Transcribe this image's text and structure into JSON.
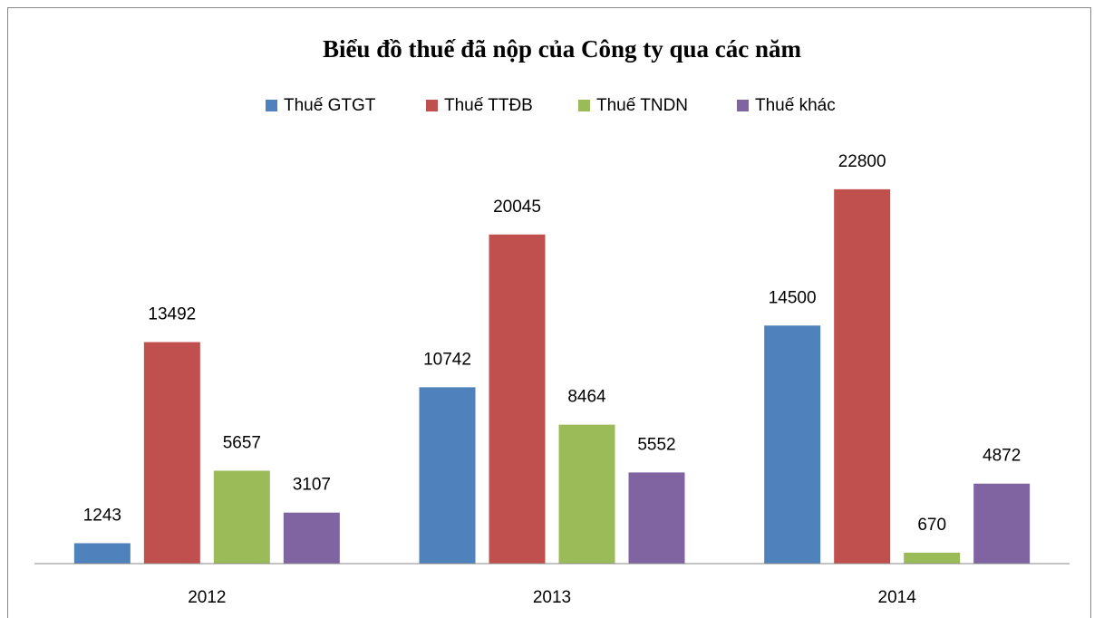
{
  "chart_data": {
    "type": "bar",
    "title": "Biểu đồ thuế đã nộp của Công ty qua các năm",
    "categories": [
      "2012",
      "2013",
      "2014"
    ],
    "series": [
      {
        "name": "Thuế GTGT",
        "color": "#4f81bd",
        "values": [
          1243,
          10742,
          14500
        ]
      },
      {
        "name": "Thuế TTĐB",
        "color": "#c0504d",
        "values": [
          13492,
          20045,
          22800
        ]
      },
      {
        "name": "Thuế TNDN",
        "color": "#9bbb59",
        "values": [
          5657,
          8464,
          670
        ]
      },
      {
        "name": "Thuế khác",
        "color": "#8064a2",
        "values": [
          3107,
          5552,
          4872
        ]
      }
    ],
    "ylim": [
      0,
      25000
    ],
    "legend": "top",
    "value_labels_shown": true
  }
}
